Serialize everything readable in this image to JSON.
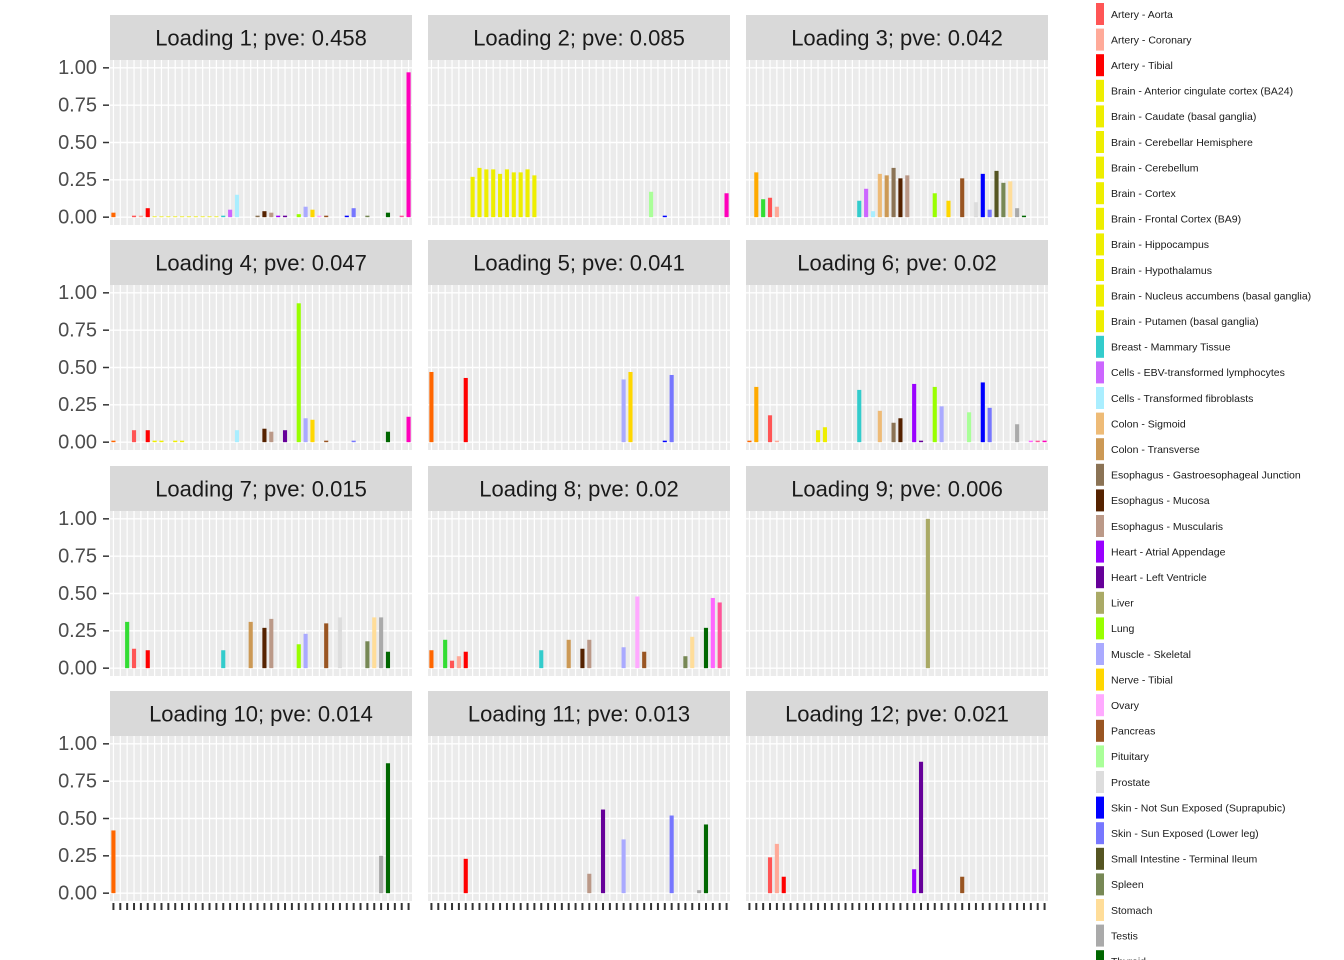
{
  "chart_data": [
    {
      "type": "bar",
      "title": "Loading 1; pve: 0.458",
      "ylim": [
        -0.0525,
        1.0525
      ],
      "yticks": [
        {
          "value": 0,
          "label": "0.00"
        },
        {
          "value": 0.25,
          "label": "0.25"
        },
        {
          "value": 0.5,
          "label": "0.50"
        },
        {
          "value": 0.75,
          "label": "0.75"
        },
        {
          "value": 1,
          "label": "1.00"
        }
      ],
      "grid": true,
      "values": [
        0.03,
        0,
        0,
        0.01,
        0.01,
        0.06,
        0.005,
        0.005,
        0.005,
        0.005,
        0.005,
        0.005,
        0.005,
        0.005,
        0.005,
        0.005,
        0.01,
        0.05,
        0.15,
        0,
        0,
        0.01,
        0.04,
        0.03,
        0.01,
        0.01,
        0,
        0.02,
        0.07,
        0.05,
        0.01,
        0.01,
        0,
        0,
        0.01,
        0.06,
        0,
        0.01,
        0,
        0,
        0.03,
        0,
        0.01,
        0.97
      ]
    },
    {
      "type": "bar",
      "title": "Loading 2; pve: 0.085",
      "ylim": [
        -0.0525,
        1.0525
      ],
      "yticks": [
        {
          "value": 0,
          "label": "0.00"
        },
        {
          "value": 0.25,
          "label": "0.25"
        },
        {
          "value": 0.5,
          "label": "0.50"
        },
        {
          "value": 0.75,
          "label": "0.75"
        },
        {
          "value": 1,
          "label": "1.00"
        }
      ],
      "grid": true,
      "values": [
        0,
        0,
        0,
        0,
        0,
        0,
        0.27,
        0.33,
        0.32,
        0.32,
        0.29,
        0.32,
        0.3,
        0.3,
        0.32,
        0.28,
        0,
        0,
        0,
        0,
        0,
        0,
        0,
        0,
        0,
        0,
        0,
        0,
        0,
        0,
        0,
        0,
        0.17,
        0,
        0.01,
        0,
        0,
        0,
        0,
        0,
        0,
        0,
        0,
        0.16
      ]
    },
    {
      "type": "bar",
      "title": "Loading 3; pve: 0.042",
      "ylim": [
        -0.0525,
        1.0525
      ],
      "yticks": [
        {
          "value": 0,
          "label": "0.00"
        },
        {
          "value": 0.25,
          "label": "0.25"
        },
        {
          "value": 0.5,
          "label": "0.50"
        },
        {
          "value": 0.75,
          "label": "0.75"
        },
        {
          "value": 1,
          "label": "1.00"
        }
      ],
      "grid": true,
      "values": [
        0,
        0.3,
        0.12,
        0.13,
        0.07,
        0,
        0,
        0,
        0,
        0,
        0,
        0,
        0,
        0,
        0,
        0,
        0.11,
        0.19,
        0.04,
        0.29,
        0.28,
        0.33,
        0.26,
        0.28,
        0,
        0,
        0,
        0.16,
        0,
        0.11,
        0,
        0.26,
        0,
        0.1,
        0.29,
        0.05,
        0.31,
        0.23,
        0.24,
        0.06,
        0.01,
        0,
        0,
        0
      ]
    },
    {
      "type": "bar",
      "title": "Loading 4; pve: 0.047",
      "ylim": [
        -0.0525,
        1.0525
      ],
      "yticks": [
        {
          "value": 0,
          "label": "0.00"
        },
        {
          "value": 0.25,
          "label": "0.25"
        },
        {
          "value": 0.5,
          "label": "0.50"
        },
        {
          "value": 0.75,
          "label": "0.75"
        },
        {
          "value": 1,
          "label": "1.00"
        }
      ],
      "grid": true,
      "values": [
        0.01,
        0,
        0,
        0.08,
        0,
        0.08,
        0.01,
        0.01,
        0,
        0.01,
        0.01,
        0,
        0,
        0,
        0,
        0,
        0,
        0,
        0.08,
        0,
        0,
        0,
        0.09,
        0.07,
        0,
        0.08,
        0,
        0.93,
        0.16,
        0.15,
        0,
        0.01,
        0,
        0,
        0,
        0.01,
        0,
        0,
        0,
        0,
        0.07,
        0,
        0,
        0.17
      ]
    },
    {
      "type": "bar",
      "title": "Loading 5; pve: 0.041",
      "ylim": [
        -0.0525,
        1.0525
      ],
      "yticks": [
        {
          "value": 0,
          "label": "0.00"
        },
        {
          "value": 0.25,
          "label": "0.25"
        },
        {
          "value": 0.5,
          "label": "0.50"
        },
        {
          "value": 0.75,
          "label": "0.75"
        },
        {
          "value": 1,
          "label": "1.00"
        }
      ],
      "grid": true,
      "values": [
        0.47,
        0,
        0,
        0,
        0,
        0.43,
        0,
        0,
        0,
        0,
        0,
        0,
        0,
        0,
        0,
        0,
        0,
        0,
        0,
        0,
        0,
        0,
        0,
        0,
        0,
        0,
        0,
        0,
        0.42,
        0.47,
        0,
        0,
        0,
        0,
        0.01,
        0.45,
        0,
        0,
        0,
        0,
        0,
        0,
        0,
        0
      ]
    },
    {
      "type": "bar",
      "title": "Loading 6; pve: 0.02",
      "ylim": [
        -0.0525,
        1.0525
      ],
      "yticks": [
        {
          "value": 0,
          "label": "0.00"
        },
        {
          "value": 0.25,
          "label": "0.25"
        },
        {
          "value": 0.5,
          "label": "0.50"
        },
        {
          "value": 0.75,
          "label": "0.75"
        },
        {
          "value": 1,
          "label": "1.00"
        }
      ],
      "grid": true,
      "values": [
        0.01,
        0.37,
        0,
        0.18,
        0.01,
        0,
        0,
        0,
        0,
        0,
        0.08,
        0.1,
        0,
        0,
        0,
        0,
        0.35,
        0,
        0,
        0.21,
        0,
        0.13,
        0.16,
        0,
        0.39,
        0.01,
        0,
        0.37,
        0.24,
        0,
        0,
        0,
        0.2,
        0,
        0.4,
        0.23,
        0,
        0,
        0,
        0.12,
        0,
        0.01,
        0.01,
        0.01
      ]
    },
    {
      "type": "bar",
      "title": "Loading 7; pve: 0.015",
      "ylim": [
        -0.0525,
        1.0525
      ],
      "yticks": [
        {
          "value": 0,
          "label": "0.00"
        },
        {
          "value": 0.25,
          "label": "0.25"
        },
        {
          "value": 0.5,
          "label": "0.50"
        },
        {
          "value": 0.75,
          "label": "0.75"
        },
        {
          "value": 1,
          "label": "1.00"
        }
      ],
      "grid": true,
      "values": [
        0,
        0,
        0.31,
        0.13,
        0,
        0.12,
        0,
        0,
        0,
        0,
        0,
        0,
        0,
        0,
        0,
        0,
        0.12,
        0,
        0,
        0,
        0.31,
        0,
        0.27,
        0.33,
        0,
        0,
        0,
        0.16,
        0.23,
        0,
        0,
        0.3,
        0,
        0.34,
        0,
        0,
        0,
        0.18,
        0.34,
        0.34,
        0.11,
        0,
        0,
        0
      ]
    },
    {
      "type": "bar",
      "title": "Loading 8; pve: 0.02",
      "ylim": [
        -0.0525,
        1.0525
      ],
      "yticks": [
        {
          "value": 0,
          "label": "0.00"
        },
        {
          "value": 0.25,
          "label": "0.25"
        },
        {
          "value": 0.5,
          "label": "0.50"
        },
        {
          "value": 0.75,
          "label": "0.75"
        },
        {
          "value": 1,
          "label": "1.00"
        }
      ],
      "grid": true,
      "values": [
        0.12,
        0,
        0.19,
        0.05,
        0.08,
        0.11,
        0,
        0,
        0,
        0,
        0,
        0,
        0,
        0,
        0,
        0,
        0.12,
        0,
        0,
        0,
        0.19,
        0,
        0.13,
        0.19,
        0,
        0,
        0,
        0,
        0.14,
        0,
        0.48,
        0.11,
        0,
        0,
        0,
        0,
        0,
        0.08,
        0.21,
        0,
        0.27,
        0.47,
        0.44,
        0
      ]
    },
    {
      "type": "bar",
      "title": "Loading 9; pve: 0.006",
      "ylim": [
        -0.0525,
        1.0525
      ],
      "yticks": [
        {
          "value": 0,
          "label": "0.00"
        },
        {
          "value": 0.25,
          "label": "0.25"
        },
        {
          "value": 0.5,
          "label": "0.50"
        },
        {
          "value": 0.75,
          "label": "0.75"
        },
        {
          "value": 1,
          "label": "1.00"
        }
      ],
      "grid": true,
      "values": [
        0,
        0,
        0,
        0,
        0,
        0,
        0,
        0,
        0,
        0,
        0,
        0,
        0,
        0,
        0,
        0,
        0,
        0,
        0,
        0,
        0,
        0,
        0,
        0,
        0,
        0,
        1.0,
        0,
        0,
        0,
        0,
        0,
        0,
        0,
        0,
        0,
        0,
        0,
        0,
        0,
        0,
        0,
        0,
        0
      ]
    },
    {
      "type": "bar",
      "title": "Loading 10; pve: 0.014",
      "ylim": [
        -0.0525,
        1.0525
      ],
      "yticks": [
        {
          "value": 0,
          "label": "0.00"
        },
        {
          "value": 0.25,
          "label": "0.25"
        },
        {
          "value": 0.5,
          "label": "0.50"
        },
        {
          "value": 0.75,
          "label": "0.75"
        },
        {
          "value": 1,
          "label": "1.00"
        }
      ],
      "grid": true,
      "values": [
        0.42,
        0,
        0,
        0,
        0,
        0,
        0,
        0,
        0,
        0,
        0,
        0,
        0,
        0,
        0,
        0,
        0,
        0,
        0,
        0,
        0,
        0,
        0,
        0,
        0,
        0,
        0,
        0,
        0,
        0,
        0,
        0,
        0,
        0,
        0,
        0,
        0,
        0,
        0,
        0.25,
        0.87,
        0,
        0,
        0
      ]
    },
    {
      "type": "bar",
      "title": "Loading 11; pve: 0.013",
      "ylim": [
        -0.0525,
        1.0525
      ],
      "yticks": [
        {
          "value": 0,
          "label": "0.00"
        },
        {
          "value": 0.25,
          "label": "0.25"
        },
        {
          "value": 0.5,
          "label": "0.50"
        },
        {
          "value": 0.75,
          "label": "0.75"
        },
        {
          "value": 1,
          "label": "1.00"
        }
      ],
      "grid": true,
      "values": [
        0,
        0,
        0,
        0,
        0,
        0.23,
        0,
        0,
        0,
        0,
        0,
        0,
        0,
        0,
        0,
        0,
        0,
        0,
        0,
        0,
        0,
        0,
        0,
        0.13,
        0,
        0.56,
        0,
        0,
        0.36,
        0,
        0,
        0,
        0,
        0,
        0,
        0.52,
        0,
        0,
        0,
        0.02,
        0.46,
        0,
        0,
        0
      ]
    },
    {
      "type": "bar",
      "title": "Loading 12; pve: 0.021",
      "ylim": [
        -0.0525,
        1.0525
      ],
      "yticks": [
        {
          "value": 0,
          "label": "0.00"
        },
        {
          "value": 0.25,
          "label": "0.25"
        },
        {
          "value": 0.5,
          "label": "0.50"
        },
        {
          "value": 0.75,
          "label": "0.75"
        },
        {
          "value": 1,
          "label": "1.00"
        }
      ],
      "grid": true,
      "values": [
        0,
        0,
        0,
        0.24,
        0.33,
        0.11,
        0,
        0,
        0,
        0,
        0,
        0,
        0,
        0,
        0,
        0,
        0,
        0,
        0,
        0,
        0,
        0,
        0,
        0,
        0.16,
        0.88,
        0,
        0,
        0,
        0,
        0,
        0.11,
        0,
        0,
        0,
        0,
        0,
        0,
        0,
        0,
        0,
        0,
        0,
        0
      ]
    }
  ],
  "bar_colors": [
    "#FF6600",
    "#FFAA00",
    "#33DD33",
    "#FF5555",
    "#FFAA99",
    "#FF0000",
    "#EEEE00",
    "#EEEE00",
    "#EEEE00",
    "#EEEE00",
    "#EEEE00",
    "#EEEE00",
    "#EEEE00",
    "#EEEE00",
    "#EEEE00",
    "#EEEE00",
    "#33CCCC",
    "#CC66FF",
    "#AAEEFF",
    "#EEBB77",
    "#CC9955",
    "#8B7355",
    "#552200",
    "#BB9988",
    "#9900FF",
    "#660099",
    "#AAAA66",
    "#99FF00",
    "#AAAAFF",
    "#FFD700",
    "#FFAAFF",
    "#995522",
    "#AAFF99",
    "#DDDDDD",
    "#0000FF",
    "#7777FF",
    "#555522",
    "#778855",
    "#FFDD99",
    "#AAAAAA",
    "#006600",
    "#FF66FF",
    "#FF5599",
    "#FF00BB"
  ],
  "legend": [
    {
      "name": "Artery - Aorta",
      "color": "#FF5555"
    },
    {
      "name": "Artery - Coronary",
      "color": "#FFAA99"
    },
    {
      "name": "Artery - Tibial",
      "color": "#FF0000"
    },
    {
      "name": "Brain - Anterior cingulate cortex (BA24)",
      "color": "#EEEE00"
    },
    {
      "name": "Brain - Caudate (basal ganglia)",
      "color": "#EEEE00"
    },
    {
      "name": "Brain - Cerebellar Hemisphere",
      "color": "#EEEE00"
    },
    {
      "name": "Brain - Cerebellum",
      "color": "#EEEE00"
    },
    {
      "name": "Brain - Cortex",
      "color": "#EEEE00"
    },
    {
      "name": "Brain - Frontal Cortex (BA9)",
      "color": "#EEEE00"
    },
    {
      "name": "Brain - Hippocampus",
      "color": "#EEEE00"
    },
    {
      "name": "Brain - Hypothalamus",
      "color": "#EEEE00"
    },
    {
      "name": "Brain - Nucleus accumbens (basal ganglia)",
      "color": "#EEEE00"
    },
    {
      "name": "Brain - Putamen (basal ganglia)",
      "color": "#EEEE00"
    },
    {
      "name": "Breast - Mammary Tissue",
      "color": "#33CCCC"
    },
    {
      "name": "Cells - EBV-transformed lymphocytes",
      "color": "#CC66FF"
    },
    {
      "name": "Cells - Transformed fibroblasts",
      "color": "#AAEEFF"
    },
    {
      "name": "Colon - Sigmoid",
      "color": "#EEBB77"
    },
    {
      "name": "Colon - Transverse",
      "color": "#CC9955"
    },
    {
      "name": "Esophagus - Gastroesophageal Junction",
      "color": "#8B7355"
    },
    {
      "name": "Esophagus - Mucosa",
      "color": "#552200"
    },
    {
      "name": "Esophagus - Muscularis",
      "color": "#BB9988"
    },
    {
      "name": "Heart - Atrial Appendage",
      "color": "#9900FF"
    },
    {
      "name": "Heart - Left Ventricle",
      "color": "#660099"
    },
    {
      "name": "Liver",
      "color": "#AAAA66"
    },
    {
      "name": "Lung",
      "color": "#99FF00"
    },
    {
      "name": "Muscle - Skeletal",
      "color": "#AAAAFF"
    },
    {
      "name": "Nerve - Tibial",
      "color": "#FFD700"
    },
    {
      "name": "Ovary",
      "color": "#FFAAFF"
    },
    {
      "name": "Pancreas",
      "color": "#995522"
    },
    {
      "name": "Pituitary",
      "color": "#AAFF99"
    },
    {
      "name": "Prostate",
      "color": "#DDDDDD"
    },
    {
      "name": "Skin - Not Sun Exposed (Suprapubic)",
      "color": "#0000FF"
    },
    {
      "name": "Skin - Sun Exposed (Lower leg)",
      "color": "#7777FF"
    },
    {
      "name": "Small Intestine - Terminal Ileum",
      "color": "#555522"
    },
    {
      "name": "Spleen",
      "color": "#778855"
    },
    {
      "name": "Stomach",
      "color": "#FFDD99"
    },
    {
      "name": "Testis",
      "color": "#AAAAAA"
    },
    {
      "name": "Thyroid",
      "color": "#006600"
    }
  ]
}
